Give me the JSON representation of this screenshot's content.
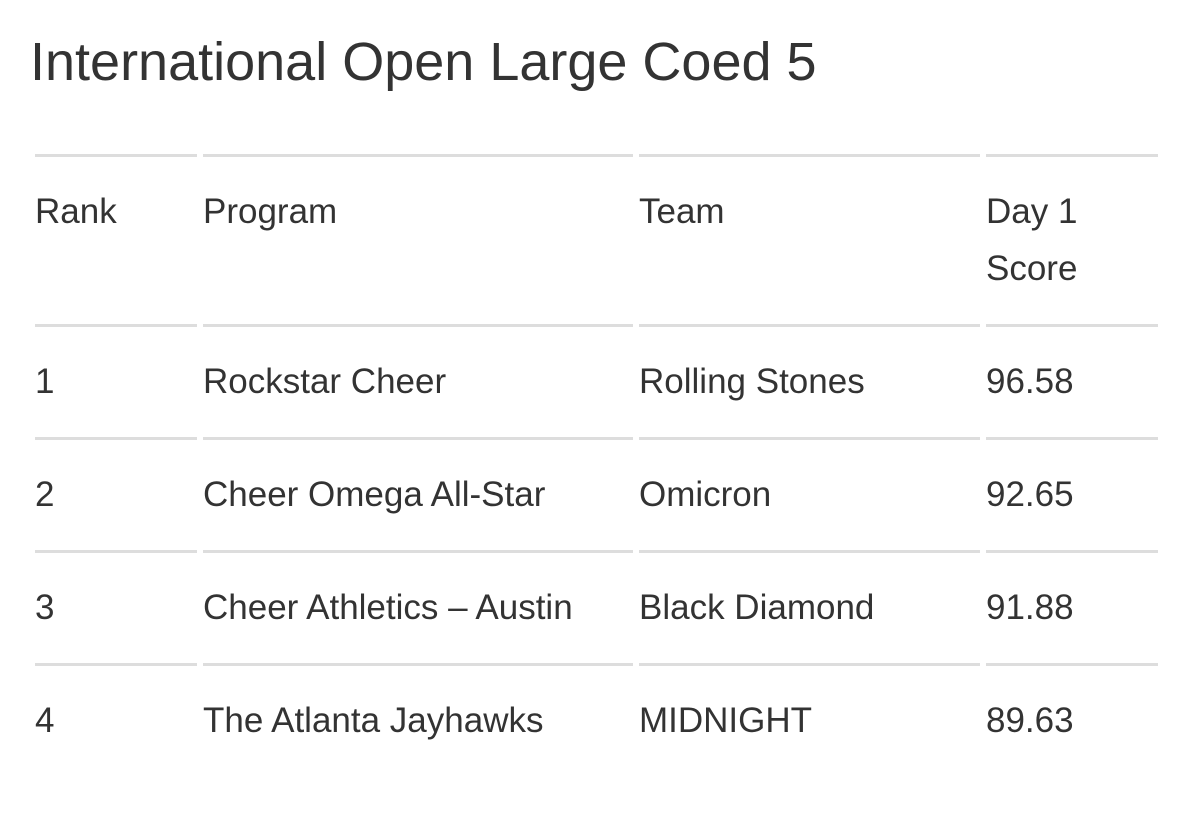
{
  "title": "International Open Large Coed 5",
  "table": {
    "header": [
      "Rank",
      "Program",
      "Team",
      "Day 1 Score"
    ],
    "rows": [
      [
        1,
        "Rockstar Cheer",
        "Rolling Stones",
        96.58
      ],
      [
        2,
        "Cheer Omega All-Star",
        "Omicron",
        92.65
      ],
      [
        3,
        "Cheer Athletics – Austin",
        "Black Diamond",
        91.88
      ],
      [
        4,
        "The Atlanta Jayhawks",
        "MIDNIGHT",
        89.63
      ]
    ]
  }
}
